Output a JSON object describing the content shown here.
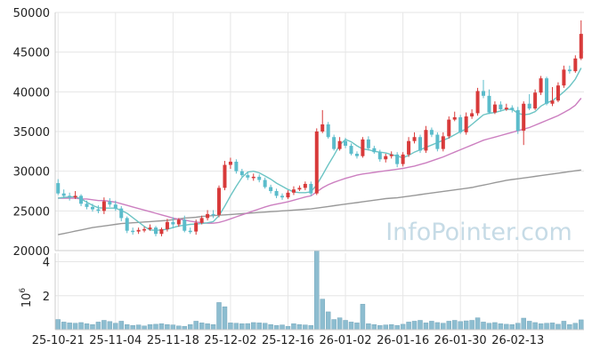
{
  "chart_data": {
    "type": "candlestick",
    "watermark": "InfoPointer.com",
    "x_ticks": [
      "25-10-21",
      "25-11-04",
      "25-11-18",
      "25-12-02",
      "25-12-16",
      "26-01-02",
      "26-01-16",
      "26-01-30",
      "26-02-13"
    ],
    "price_axis": {
      "ticks": [
        20000,
        25000,
        30000,
        35000,
        40000,
        45000,
        50000
      ],
      "ylim": [
        20000,
        50000
      ]
    },
    "volume_axis": {
      "label": "10^6",
      "label_base": "10",
      "label_exp": "6",
      "ticks": [
        2,
        4
      ],
      "ylim": [
        0,
        4.5
      ]
    },
    "colors": {
      "up": "#d83a3a",
      "down": "#5bbccb",
      "ma_short": "#6cc4c4",
      "ma_mid": "#cc7fc0",
      "ma_long": "#999999",
      "volume": "#8dbdd0",
      "grid": "#e6e6e6",
      "axis": "#cccccc",
      "watermark": "#c6dbe6"
    },
    "series": {
      "close": [
        27200,
        26900,
        26700,
        26900,
        25900,
        25500,
        25200,
        25000,
        26200,
        25800,
        25300,
        24100,
        22500,
        22400,
        22600,
        22700,
        22900,
        22100,
        22700,
        23600,
        23300,
        23900,
        22500,
        22400,
        23500,
        24100,
        24600,
        24500,
        27900,
        30800,
        31200,
        30000,
        29500,
        29200,
        29300,
        28900,
        28000,
        27500,
        26900,
        26700,
        27300,
        27700,
        27900,
        28400,
        27200,
        35000,
        35900,
        34300,
        32800,
        33800,
        33200,
        32200,
        31900,
        34000,
        32900,
        32400,
        31500,
        31900,
        32100,
        30900,
        32100,
        33800,
        34300,
        32600,
        35200,
        34600,
        32800,
        34400,
        36500,
        36800,
        34900,
        36900,
        37300,
        40100,
        39500,
        37400,
        38400,
        37800,
        38000,
        37700,
        35100,
        38500,
        37900,
        39900,
        41700,
        38500,
        38900,
        40800,
        42800,
        42600,
        44200,
        47300
      ],
      "open": [
        28500,
        27200,
        26900,
        26700,
        26900,
        25900,
        25500,
        25200,
        25000,
        26200,
        25800,
        25300,
        24100,
        22500,
        22400,
        22600,
        22700,
        22900,
        22100,
        22700,
        23600,
        23300,
        23900,
        22500,
        22400,
        23500,
        24100,
        24600,
        24500,
        27900,
        30800,
        31200,
        30000,
        29500,
        29200,
        29300,
        28900,
        28000,
        27500,
        26900,
        26700,
        27300,
        27700,
        27900,
        28400,
        27200,
        35000,
        35900,
        34300,
        32800,
        33800,
        33200,
        32200,
        31900,
        34000,
        32900,
        32400,
        31500,
        31900,
        32100,
        30900,
        32100,
        33800,
        34300,
        32600,
        35200,
        34600,
        32800,
        34400,
        36500,
        36800,
        34900,
        36900,
        37300,
        40100,
        39500,
        37400,
        38400,
        37800,
        38000,
        37700,
        35100,
        38500,
        37900,
        39900,
        41700,
        38500,
        38900,
        40800,
        42800,
        42600,
        44200
      ],
      "high": [
        29000,
        27700,
        27300,
        27500,
        27100,
        26300,
        25900,
        25700,
        26700,
        26600,
        26300,
        25600,
        24300,
        22900,
        22900,
        23000,
        23300,
        23100,
        22900,
        24000,
        24200,
        24100,
        24400,
        22900,
        23900,
        24400,
        25100,
        25100,
        28200,
        31300,
        31700,
        31500,
        30300,
        29900,
        29700,
        29600,
        29200,
        28300,
        27800,
        27200,
        27600,
        28100,
        28200,
        28700,
        28700,
        35400,
        37700,
        36200,
        34600,
        34300,
        34200,
        33500,
        32500,
        34300,
        34400,
        33200,
        32700,
        32200,
        32500,
        32400,
        32400,
        34300,
        34900,
        34600,
        35700,
        35500,
        34900,
        34900,
        36900,
        37500,
        37100,
        37400,
        37800,
        40500,
        41500,
        40300,
        38800,
        38800,
        38500,
        38300,
        38100,
        38800,
        39700,
        40300,
        42000,
        41900,
        40600,
        41200,
        43300,
        43300,
        44600,
        49000
      ],
      "low": [
        27000,
        26600,
        26300,
        26500,
        25600,
        25200,
        24900,
        24700,
        24600,
        25500,
        25000,
        23700,
        22200,
        22000,
        22100,
        22300,
        22500,
        21800,
        21800,
        22400,
        22800,
        23000,
        22300,
        22100,
        22000,
        23300,
        23800,
        24100,
        24200,
        27600,
        30300,
        29700,
        29300,
        28900,
        28800,
        28600,
        27800,
        27200,
        26600,
        26400,
        26500,
        27000,
        27500,
        27600,
        26900,
        27000,
        34800,
        34100,
        32600,
        32600,
        32900,
        32000,
        31600,
        31700,
        32600,
        32200,
        31200,
        31100,
        31600,
        30500,
        30600,
        31800,
        33500,
        32300,
        32300,
        34300,
        32500,
        32500,
        34100,
        36300,
        34700,
        34600,
        36600,
        37000,
        39200,
        37200,
        37200,
        37500,
        37600,
        37400,
        34700,
        33300,
        37700,
        37700,
        39600,
        38300,
        38200,
        38700,
        40500,
        42300,
        42400,
        44000
      ],
      "volume": [
        0.6,
        0.45,
        0.4,
        0.38,
        0.42,
        0.35,
        0.3,
        0.45,
        0.55,
        0.48,
        0.38,
        0.5,
        0.3,
        0.25,
        0.28,
        0.22,
        0.3,
        0.32,
        0.35,
        0.3,
        0.28,
        0.22,
        0.2,
        0.3,
        0.5,
        0.4,
        0.35,
        0.3,
        1.6,
        1.35,
        0.4,
        0.38,
        0.35,
        0.36,
        0.42,
        0.4,
        0.38,
        0.3,
        0.25,
        0.28,
        0.2,
        0.35,
        0.3,
        0.28,
        0.25,
        4.65,
        1.8,
        1.05,
        0.6,
        0.7,
        0.55,
        0.45,
        0.4,
        1.5,
        0.35,
        0.3,
        0.25,
        0.28,
        0.3,
        0.25,
        0.32,
        0.45,
        0.5,
        0.55,
        0.4,
        0.5,
        0.42,
        0.38,
        0.5,
        0.55,
        0.48,
        0.52,
        0.55,
        0.7,
        0.45,
        0.38,
        0.42,
        0.35,
        0.32,
        0.3,
        0.38,
        0.68,
        0.5,
        0.42,
        0.35,
        0.38,
        0.4,
        0.32,
        0.5,
        0.3,
        0.38,
        0.58
      ],
      "ma_short": [
        26600,
        26700,
        26750,
        26800,
        26500,
        26100,
        25700,
        25400,
        25350,
        25350,
        25350,
        25050,
        24700,
        24150,
        23600,
        23050,
        22600,
        22550,
        22600,
        22700,
        22900,
        23100,
        23200,
        23300,
        23350,
        23400,
        23500,
        23650,
        24400,
        25600,
        26900,
        28100,
        29200,
        29900,
        30000,
        29800,
        29400,
        29000,
        28500,
        28100,
        27700,
        27400,
        27300,
        27300,
        27400,
        28300,
        29500,
        30800,
        32000,
        33300,
        34000,
        33700,
        33200,
        32800,
        32700,
        32500,
        32400,
        32300,
        32100,
        31900,
        31700,
        32000,
        32400,
        32700,
        33000,
        33300,
        33600,
        33900,
        34200,
        34600,
        35000,
        35300,
        35900,
        36500,
        37100,
        37300,
        37400,
        37600,
        37800,
        37800,
        37300,
        37100,
        37200,
        37500,
        38200,
        38600,
        38900,
        39400,
        40000,
        40700,
        41600,
        43000
      ],
      "ma_mid": [
        26600,
        26600,
        26600,
        26600,
        26500,
        26500,
        26400,
        26300,
        26300,
        26200,
        26100,
        25900,
        25700,
        25500,
        25300,
        25100,
        24900,
        24700,
        24500,
        24300,
        24100,
        23950,
        23850,
        23700,
        23600,
        23500,
        23450,
        23450,
        23550,
        23750,
        24000,
        24250,
        24500,
        24750,
        25000,
        25250,
        25500,
        25700,
        25850,
        26000,
        26150,
        26350,
        26550,
        26750,
        26900,
        27400,
        27900,
        28300,
        28600,
        28850,
        29100,
        29300,
        29500,
        29650,
        29750,
        29850,
        29950,
        30050,
        30150,
        30250,
        30350,
        30500,
        30650,
        30850,
        31050,
        31300,
        31550,
        31800,
        32100,
        32400,
        32700,
        33000,
        33300,
        33600,
        33900,
        34100,
        34300,
        34500,
        34700,
        34900,
        35100,
        35300,
        35500,
        35800,
        36100,
        36400,
        36700,
        37000,
        37400,
        37800,
        38300,
        39200
      ],
      "ma_long": [
        22000,
        22150,
        22300,
        22450,
        22600,
        22750,
        22900,
        23000,
        23100,
        23200,
        23300,
        23400,
        23450,
        23500,
        23550,
        23600,
        23650,
        23700,
        23750,
        23800,
        23900,
        24000,
        24100,
        24150,
        24200,
        24300,
        24350,
        24400,
        24450,
        24500,
        24550,
        24600,
        24650,
        24700,
        24750,
        24800,
        24850,
        24900,
        24950,
        25000,
        25050,
        25100,
        25150,
        25200,
        25250,
        25350,
        25450,
        25550,
        25650,
        25750,
        25850,
        25950,
        26050,
        26150,
        26250,
        26350,
        26450,
        26550,
        26600,
        26650,
        26750,
        26850,
        26950,
        27050,
        27150,
        27250,
        27350,
        27450,
        27550,
        27650,
        27750,
        27850,
        27950,
        28100,
        28250,
        28400,
        28550,
        28700,
        28850,
        28950,
        29050,
        29150,
        29250,
        29350,
        29450,
        29550,
        29650,
        29750,
        29850,
        29950,
        30050,
        30150
      ]
    }
  }
}
